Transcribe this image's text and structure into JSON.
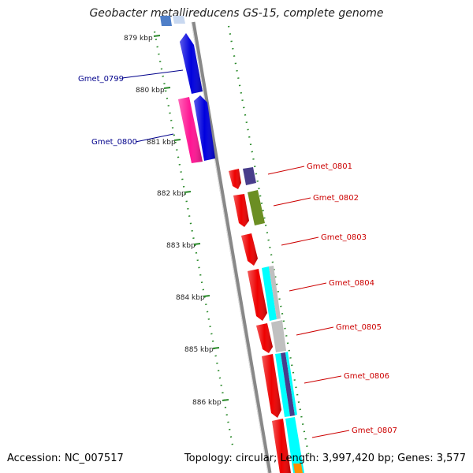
{
  "title": "Geobacter metallireducens GS-15, complete genome",
  "footer": {
    "accession": "Accession: NC_007517",
    "topology": "Topology: circular; Length: 3,997,420 bp; Genes: 3,577"
  },
  "ticks": [
    "879 kbp",
    "880 kbp",
    "881 kbp",
    "882 kbp",
    "883 kbp",
    "884 kbp",
    "885 kbp",
    "886 kbp"
  ],
  "genes": [
    {
      "id": "Gmet_0799",
      "color": "#0000dd"
    },
    {
      "id": "Gmet_0800",
      "color": "#ff1493"
    },
    {
      "id": "Gmet_0801",
      "color": "#ee0000"
    },
    {
      "id": "Gmet_0802",
      "color": "#ee0000"
    },
    {
      "id": "Gmet_0803",
      "color": "#ee0000"
    },
    {
      "id": "Gmet_0804",
      "color": "#ee0000"
    },
    {
      "id": "Gmet_0805",
      "color": "#ee0000"
    },
    {
      "id": "Gmet_0806",
      "color": "#ee0000"
    },
    {
      "id": "Gmet_0807",
      "color": "#ee0000"
    }
  ],
  "colors": {
    "backbone": "#888888",
    "tick": "#2a8a2a",
    "label_left": "#00008b",
    "label_right": "#cc0000",
    "cog_purple": "#483d8b",
    "cog_olive": "#6b8e23",
    "cog_cyan": "#00ffff",
    "cog_gray": "#c0c0c0"
  }
}
